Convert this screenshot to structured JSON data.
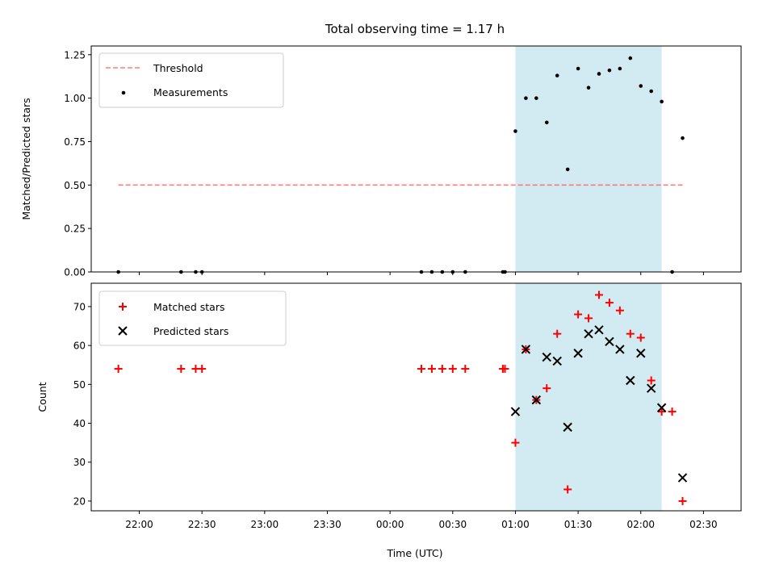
{
  "chart_data": {
    "type": "scatter",
    "title": "Total observing time = 1.17 h",
    "xlabel": "Time (UTC)",
    "x_axis": {
      "domain_minutes": [
        -143,
        168
      ],
      "ticks": [
        {
          "m": -120,
          "label": "22:00"
        },
        {
          "m": -90,
          "label": "22:30"
        },
        {
          "m": -60,
          "label": "23:00"
        },
        {
          "m": -30,
          "label": "23:30"
        },
        {
          "m": 0,
          "label": "00:00"
        },
        {
          "m": 30,
          "label": "00:30"
        },
        {
          "m": 60,
          "label": "01:00"
        },
        {
          "m": 90,
          "label": "01:30"
        },
        {
          "m": 120,
          "label": "02:00"
        },
        {
          "m": 150,
          "label": "02:30"
        }
      ]
    },
    "observing_window": {
      "start": "01:00",
      "end": "02:10",
      "color": "#add8e6"
    },
    "panels": [
      {
        "ylabel": "Matched/Predicted stars",
        "ylim": [
          0,
          1.3
        ],
        "yticks": [
          {
            "v": 0.0,
            "label": "0.00"
          },
          {
            "v": 0.25,
            "label": "0.25"
          },
          {
            "v": 0.5,
            "label": "0.50"
          },
          {
            "v": 0.75,
            "label": "0.75"
          },
          {
            "v": 1.0,
            "label": "1.00"
          },
          {
            "v": 1.25,
            "label": "1.25"
          }
        ],
        "legend": {
          "placement": "upper left",
          "entries": [
            "Threshold",
            "Measurements"
          ]
        },
        "threshold": {
          "name": "Threshold",
          "value": 0.5,
          "x_range": [
            "21:50",
            "02:20"
          ],
          "color": "#ff6666",
          "style": "dashed"
        },
        "series": [
          {
            "name": "Measurements",
            "marker": "dot",
            "color": "#000000",
            "points": [
              [
                "21:50",
                0.0
              ],
              [
                "22:20",
                0.0
              ],
              [
                "22:27",
                0.0
              ],
              [
                "22:30",
                0.0
              ],
              [
                "00:15",
                0.0
              ],
              [
                "00:20",
                0.0
              ],
              [
                "00:25",
                0.0
              ],
              [
                "00:30",
                0.0
              ],
              [
                "00:36",
                0.0
              ],
              [
                "00:54",
                0.0
              ],
              [
                "00:55",
                0.0
              ],
              [
                "01:00",
                0.81
              ],
              [
                "01:05",
                1.0
              ],
              [
                "01:10",
                1.0
              ],
              [
                "01:15",
                0.86
              ],
              [
                "01:20",
                1.13
              ],
              [
                "01:25",
                0.59
              ],
              [
                "01:30",
                1.17
              ],
              [
                "01:35",
                1.06
              ],
              [
                "01:40",
                1.14
              ],
              [
                "01:45",
                1.16
              ],
              [
                "01:50",
                1.17
              ],
              [
                "01:55",
                1.23
              ],
              [
                "02:00",
                1.07
              ],
              [
                "02:05",
                1.04
              ],
              [
                "02:10",
                0.98
              ],
              [
                "02:15",
                0.0
              ],
              [
                "02:20",
                0.77
              ]
            ]
          }
        ]
      },
      {
        "ylabel": "Count",
        "ylim": [
          17.5,
          76
        ],
        "yticks": [
          {
            "v": 20,
            "label": "20"
          },
          {
            "v": 30,
            "label": "30"
          },
          {
            "v": 40,
            "label": "40"
          },
          {
            "v": 50,
            "label": "50"
          },
          {
            "v": 60,
            "label": "60"
          },
          {
            "v": 70,
            "label": "70"
          }
        ],
        "legend": {
          "placement": "upper left",
          "entries": [
            "Matched stars",
            "Predicted stars"
          ]
        },
        "series": [
          {
            "name": "Matched stars",
            "marker": "plus",
            "color": "#ff0000",
            "points": [
              [
                "21:50",
                54
              ],
              [
                "22:20",
                54
              ],
              [
                "22:27",
                54
              ],
              [
                "22:30",
                54
              ],
              [
                "00:15",
                54
              ],
              [
                "00:20",
                54
              ],
              [
                "00:25",
                54
              ],
              [
                "00:30",
                54
              ],
              [
                "00:36",
                54
              ],
              [
                "00:54",
                54
              ],
              [
                "00:55",
                54
              ],
              [
                "01:00",
                35
              ],
              [
                "01:05",
                59
              ],
              [
                "01:10",
                46
              ],
              [
                "01:15",
                49
              ],
              [
                "01:20",
                63
              ],
              [
                "01:25",
                23
              ],
              [
                "01:30",
                68
              ],
              [
                "01:35",
                67
              ],
              [
                "01:40",
                73
              ],
              [
                "01:45",
                71
              ],
              [
                "01:50",
                69
              ],
              [
                "01:55",
                63
              ],
              [
                "02:00",
                62
              ],
              [
                "02:05",
                51
              ],
              [
                "02:10",
                43
              ],
              [
                "02:15",
                43
              ],
              [
                "02:20",
                20
              ]
            ]
          },
          {
            "name": "Predicted stars",
            "marker": "x",
            "color": "#000000",
            "points": [
              [
                "01:00",
                43
              ],
              [
                "01:05",
                59
              ],
              [
                "01:10",
                46
              ],
              [
                "01:15",
                57
              ],
              [
                "01:20",
                56
              ],
              [
                "01:25",
                39
              ],
              [
                "01:30",
                58
              ],
              [
                "01:35",
                63
              ],
              [
                "01:40",
                64
              ],
              [
                "01:45",
                61
              ],
              [
                "01:50",
                59
              ],
              [
                "01:55",
                51
              ],
              [
                "02:00",
                58
              ],
              [
                "02:05",
                49
              ],
              [
                "02:10",
                44
              ],
              [
                "02:20",
                26
              ]
            ]
          }
        ]
      }
    ]
  }
}
